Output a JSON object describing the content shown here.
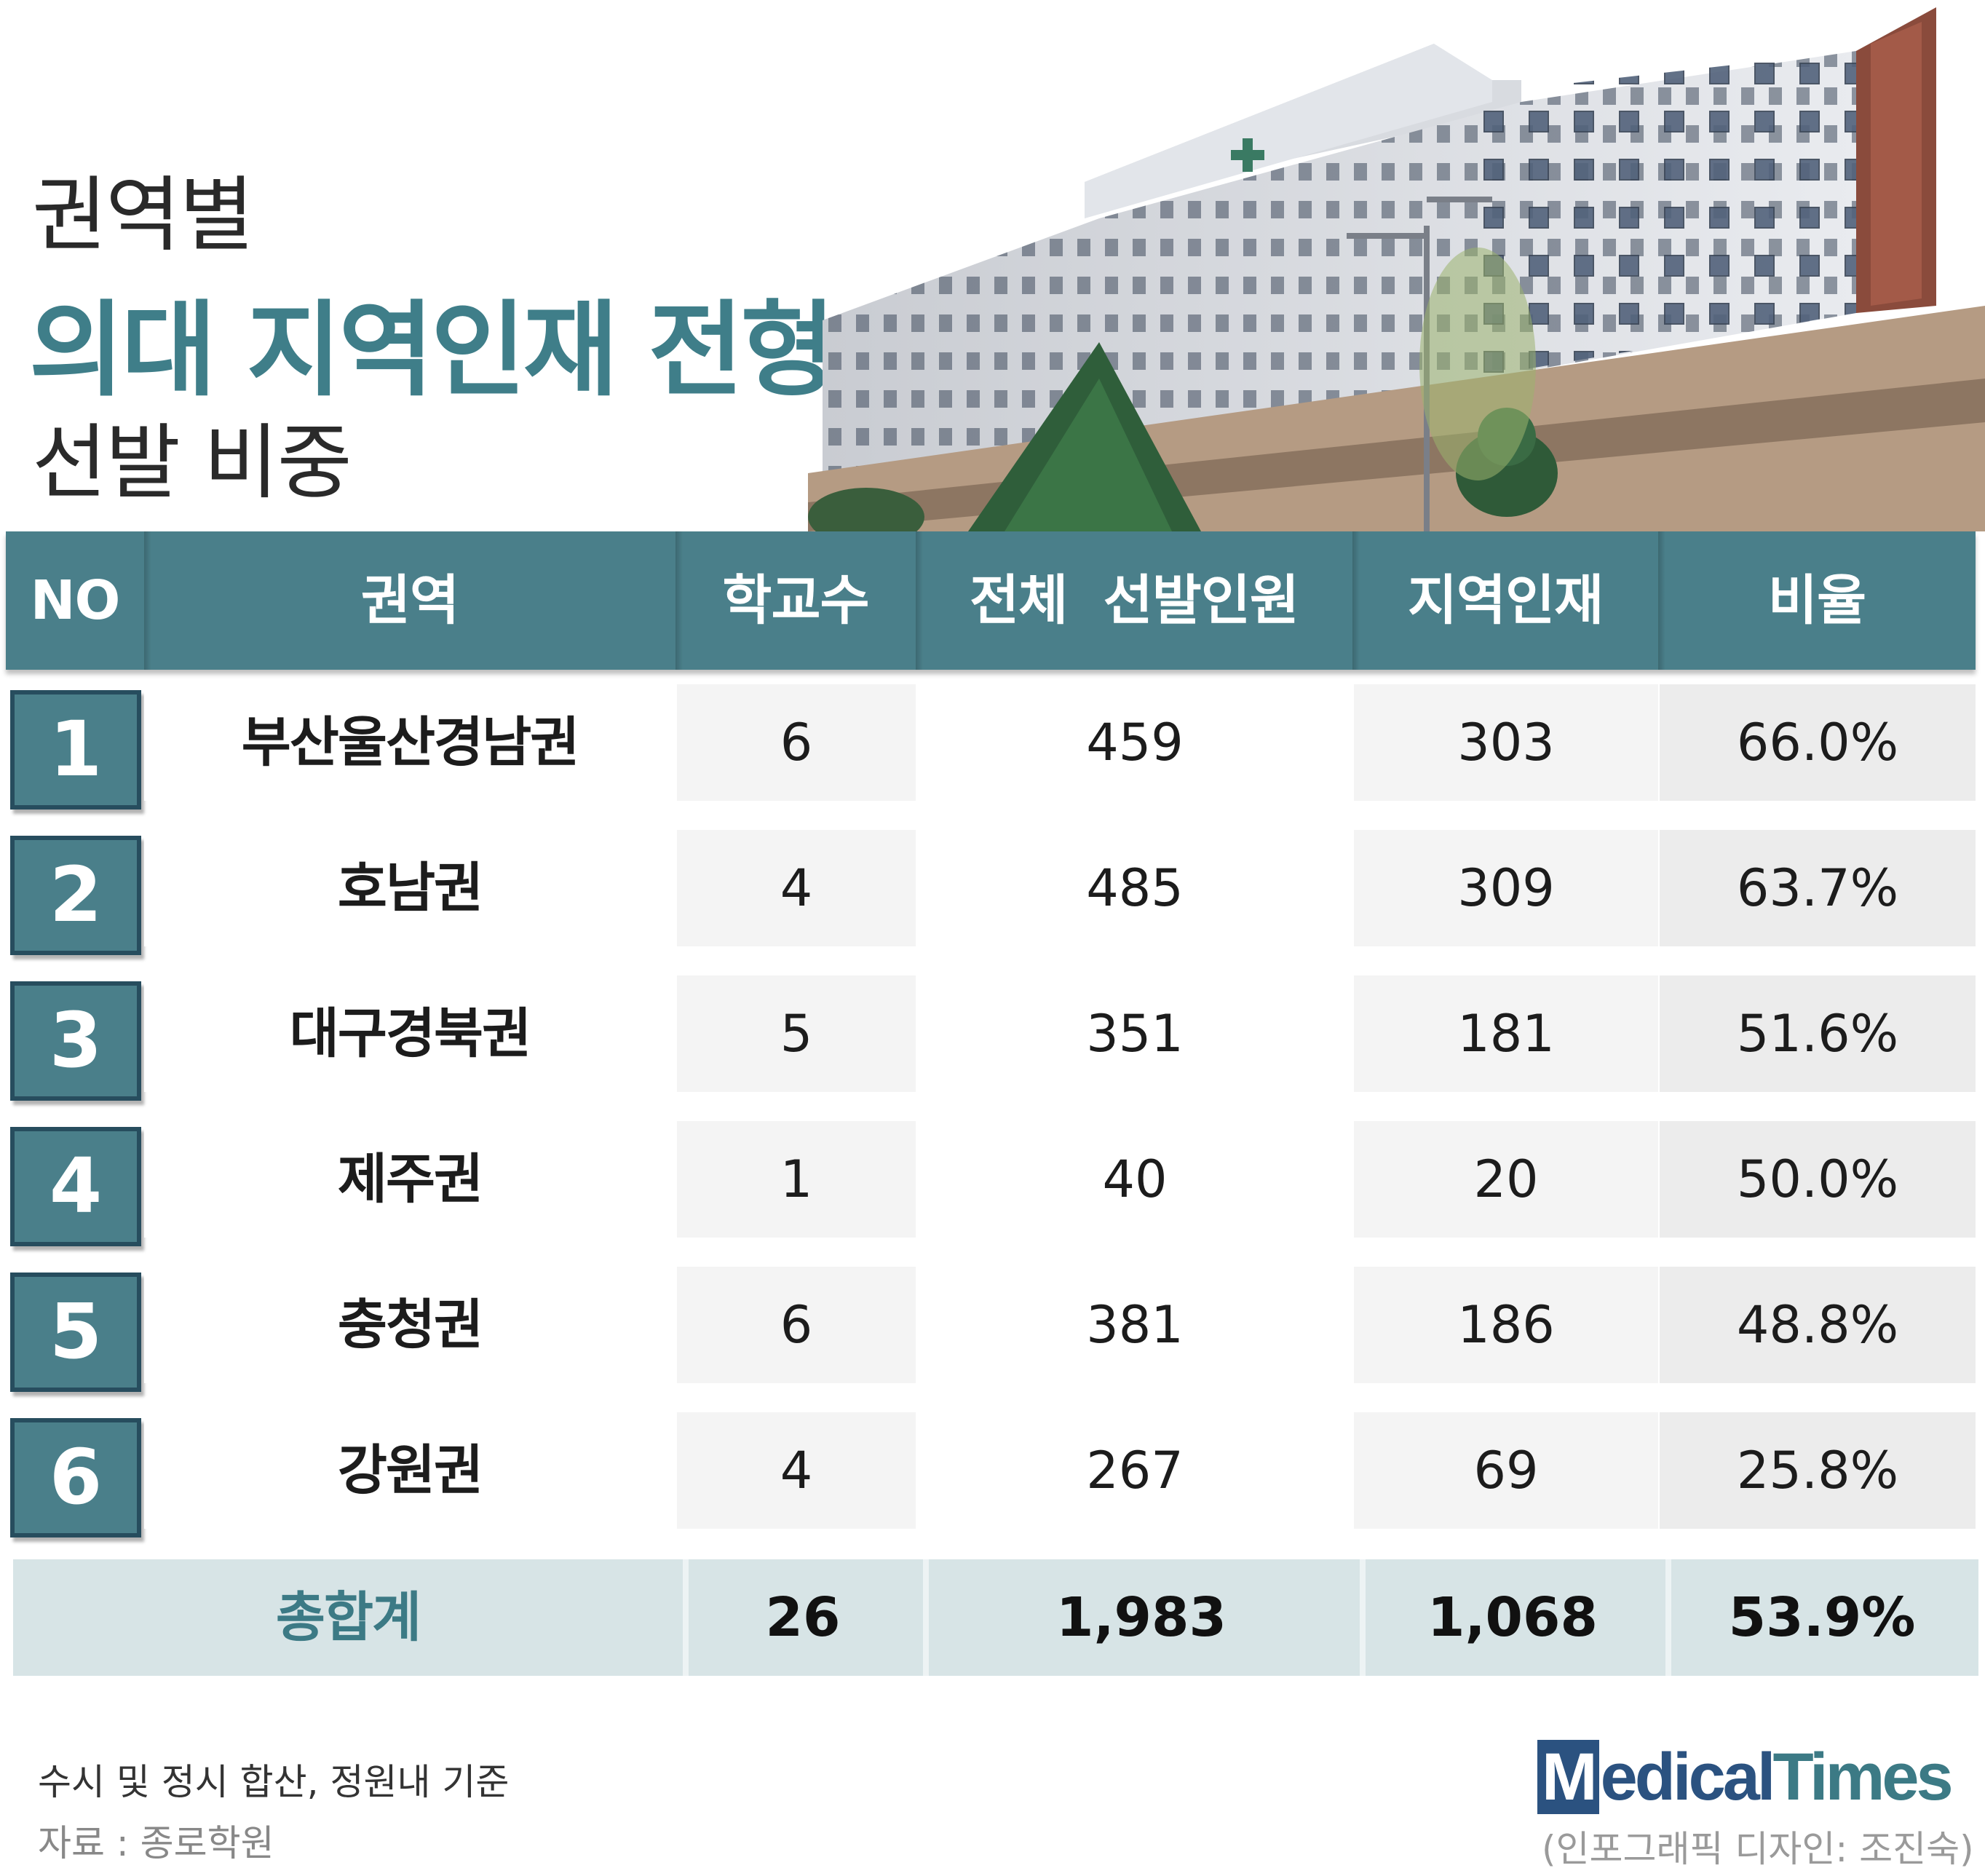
{
  "title": {
    "line1": "권역별",
    "line2": "의대 지역인재 전형",
    "line3": "선발 비중"
  },
  "table": {
    "headers": [
      "NO",
      "권역",
      "학교수",
      "전체  선발인원",
      "지역인재",
      "비율"
    ],
    "rows": [
      {
        "no": "1",
        "region": "부산울산경남권",
        "schools": "6",
        "total": "459",
        "local": "303",
        "ratio": "66.0%"
      },
      {
        "no": "2",
        "region": "호남권",
        "schools": "4",
        "total": "485",
        "local": "309",
        "ratio": "63.7%"
      },
      {
        "no": "3",
        "region": "대구경북권",
        "schools": "5",
        "total": "351",
        "local": "181",
        "ratio": "51.6%"
      },
      {
        "no": "4",
        "region": "제주권",
        "schools": "1",
        "total": "40",
        "local": "20",
        "ratio": "50.0%"
      },
      {
        "no": "5",
        "region": "충청권",
        "schools": "6",
        "total": "381",
        "local": "186",
        "ratio": "48.8%"
      },
      {
        "no": "6",
        "region": "강원권",
        "schools": "4",
        "total": "267",
        "local": "69",
        "ratio": "25.8%"
      }
    ],
    "total": {
      "label": "총합계",
      "schools": "26",
      "total": "1,983",
      "local": "1,068",
      "ratio": "53.9%"
    }
  },
  "footer": {
    "note": "수시 및 정시 합산, 정원내 기준",
    "source": "자료 : 종로학원",
    "logo_m": "M",
    "logo_medical": "edical",
    "logo_times": "Times",
    "credit": "(인포그래픽 디자인: 조진숙)"
  },
  "colors": {
    "accent": "#4a7f8a",
    "accent_dark": "#274d5e",
    "total_bg": "#d7e4e6",
    "logo_blue": "#2b5280"
  }
}
